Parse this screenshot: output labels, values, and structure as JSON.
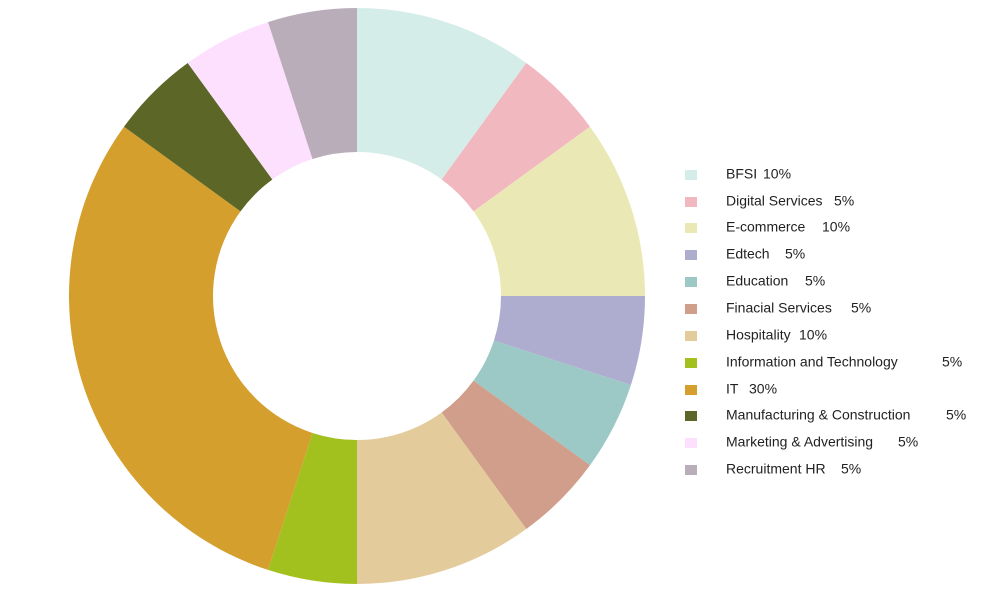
{
  "chart_data": {
    "type": "donut",
    "categories": [
      "BFSI",
      "Digital Services",
      "E-commerce",
      "Edtech",
      "Education",
      "Finacial Services",
      "Hospitality",
      "Information and Technology",
      "IT",
      "Manufacturing & Construction",
      "Marketing & Advertising",
      "Recruitment HR"
    ],
    "values": [
      10,
      5,
      10,
      5,
      5,
      5,
      10,
      5,
      30,
      5,
      5,
      5
    ],
    "value_labels": [
      "10%",
      "5%",
      "10%",
      "5%",
      "5%",
      "5%",
      "10%",
      "5%",
      "30%",
      "5%",
      "5%",
      "5%"
    ],
    "colors": [
      "#d5ede9",
      "#f2b8c0",
      "#eae9b5",
      "#aeadd0",
      "#9cc8c5",
      "#d09e8b",
      "#e4cb9c",
      "#a2c11f",
      "#d59f2e",
      "#5c6627",
      "#fde0fd",
      "#b9adba"
    ],
    "legend": "right"
  }
}
